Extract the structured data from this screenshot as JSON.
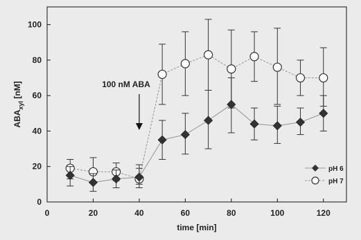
{
  "chart_data": {
    "type": "line",
    "xlabel": "time [min]",
    "ylabel": {
      "main": "ABA",
      "sub": "xyl",
      "unit": " [nM]"
    },
    "xlim": [
      0,
      130
    ],
    "ylim": [
      0,
      110
    ],
    "xticks": [
      0,
      20,
      40,
      60,
      80,
      100,
      120
    ],
    "yticks": [
      0,
      20,
      40,
      60,
      80,
      100
    ],
    "grid": false,
    "legend_position": "bottom-right",
    "annotation": {
      "text": "100 nM ABA",
      "x": 40
    },
    "series": [
      {
        "name": "pH 6",
        "marker": "filled-diamond",
        "color": "#333333",
        "x": [
          10,
          20,
          30,
          40,
          50,
          60,
          70,
          80,
          90,
          100,
          110,
          120
        ],
        "y": [
          15,
          11,
          13,
          14,
          35,
          38,
          46,
          55,
          44,
          43,
          45,
          50
        ],
        "err_low": [
          6,
          5,
          5,
          4,
          11,
          11,
          16,
          16,
          9,
          10,
          7,
          10
        ],
        "err_high": [
          5,
          5,
          5,
          5,
          11,
          12,
          17,
          15,
          9,
          11,
          8,
          10
        ]
      },
      {
        "name": "pH 7",
        "marker": "open-circle",
        "color": "#333333",
        "x": [
          10,
          20,
          30,
          40,
          50,
          60,
          70,
          80,
          90,
          100,
          110,
          120
        ],
        "y": [
          19,
          17,
          17,
          13,
          72,
          78,
          83,
          75,
          82,
          76,
          70,
          70
        ],
        "err_low": [
          6,
          6,
          5,
          5,
          17,
          18,
          20,
          22,
          14,
          21,
          10,
          16
        ],
        "err_high": [
          5,
          8,
          5,
          8,
          17,
          18,
          20,
          22,
          14,
          22,
          10,
          17
        ]
      }
    ]
  }
}
